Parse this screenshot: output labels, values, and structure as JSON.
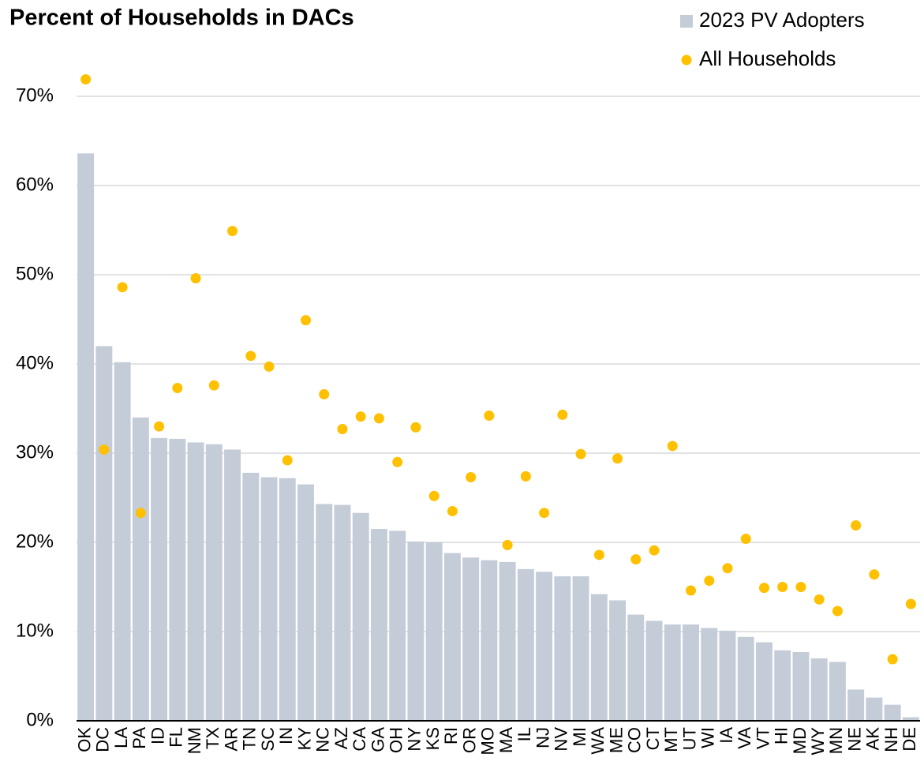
{
  "chart_data": {
    "type": "bar",
    "title": "Percent of Households in DACs",
    "categories": [
      "OK",
      "DC",
      "LA",
      "PA",
      "ID",
      "FL",
      "NM",
      "TX",
      "AR",
      "TN",
      "SC",
      "IN",
      "KY",
      "NC",
      "AZ",
      "CA",
      "GA",
      "OH",
      "NY",
      "KS",
      "RI",
      "OR",
      "MO",
      "MA",
      "IL",
      "NJ",
      "NV",
      "MI",
      "WA",
      "ME",
      "CO",
      "CT",
      "MT",
      "UT",
      "WI",
      "IA",
      "VA",
      "VT",
      "HI",
      "MD",
      "WY",
      "MN",
      "NE",
      "AK",
      "NH",
      "DE"
    ],
    "series": [
      {
        "name": "2023 PV Adopters",
        "color": "#c4ccd8",
        "kind": "bar",
        "values": [
          63.6,
          42.0,
          40.2,
          34.0,
          31.7,
          31.6,
          31.2,
          31.0,
          30.4,
          27.8,
          27.3,
          27.2,
          26.5,
          24.3,
          24.2,
          23.3,
          21.5,
          21.3,
          20.1,
          20.0,
          18.8,
          18.3,
          18.0,
          17.8,
          17.0,
          16.7,
          16.2,
          16.2,
          14.2,
          13.5,
          11.9,
          11.2,
          10.8,
          10.8,
          10.4,
          10.1,
          9.4,
          8.8,
          7.9,
          7.7,
          7.0,
          6.6,
          3.5,
          2.6,
          1.8,
          0.4
        ]
      },
      {
        "name": "All Households",
        "color": "#ffc000",
        "kind": "dot",
        "values": [
          71.9,
          30.4,
          48.6,
          23.3,
          33.0,
          37.3,
          49.6,
          37.6,
          54.9,
          40.9,
          39.7,
          29.2,
          44.9,
          36.6,
          32.7,
          34.1,
          33.9,
          29.0,
          32.9,
          25.2,
          23.5,
          27.3,
          34.2,
          19.7,
          27.4,
          23.3,
          34.3,
          29.9,
          18.6,
          29.4,
          18.1,
          19.1,
          30.8,
          14.6,
          15.7,
          17.1,
          20.4,
          14.9,
          15.0,
          15.0,
          13.6,
          12.3,
          21.9,
          16.4,
          6.9,
          13.1
        ]
      }
    ],
    "ylim": [
      0,
      74
    ],
    "yticks": [
      {
        "value": 0,
        "label": "0%"
      },
      {
        "value": 10,
        "label": "10%"
      },
      {
        "value": 20,
        "label": "20%"
      },
      {
        "value": 30,
        "label": "30%"
      },
      {
        "value": 40,
        "label": "40%"
      },
      {
        "value": 50,
        "label": "50%"
      },
      {
        "value": 60,
        "label": "60%"
      },
      {
        "value": 70,
        "label": "70%"
      }
    ],
    "grid": true,
    "legend": "top-right"
  }
}
